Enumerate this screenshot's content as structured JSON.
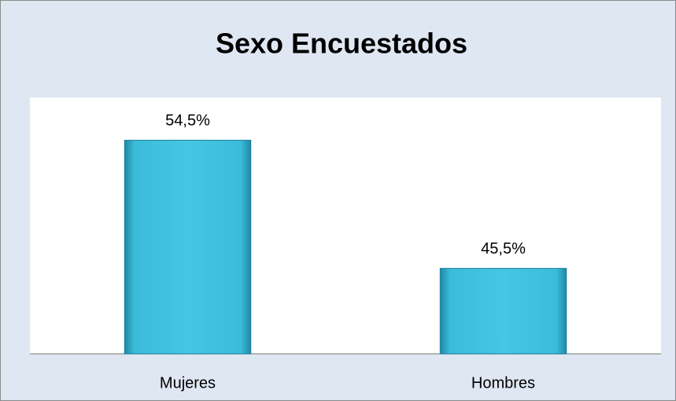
{
  "chart_data": {
    "type": "bar",
    "title": "Sexo Encuestados",
    "categories": [
      "Mujeres",
      "Hombres"
    ],
    "values": [
      54.5,
      45.5
    ],
    "value_labels": [
      "54,5%",
      "45,5%"
    ],
    "color": "#3cc0de",
    "ylim": [
      39.5,
      57.5
    ]
  }
}
